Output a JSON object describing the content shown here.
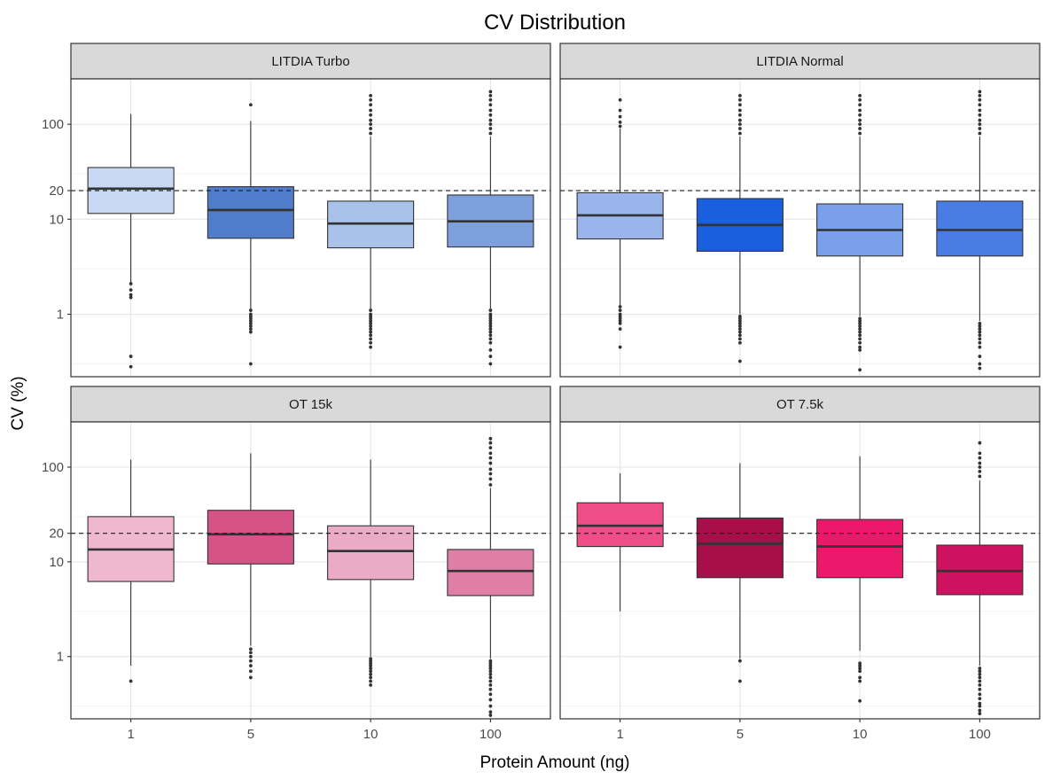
{
  "chart_data": {
    "type": "box",
    "title": "CV Distribution",
    "xlabel": "Protein Amount (ng)",
    "ylabel": "CV (%)",
    "y_scale": "log10",
    "y_ticks": [
      1,
      10,
      20,
      100
    ],
    "y_tick_labels": [
      "1",
      "10",
      "20",
      "100"
    ],
    "ylim": [
      0.22,
      300
    ],
    "reference_line": {
      "y": 20,
      "style": "dashed"
    },
    "categories": [
      "1",
      "5",
      "10",
      "100"
    ],
    "grid": true,
    "legend": "none",
    "panels": [
      {
        "label": "LITDIA Turbo",
        "boxes": [
          {
            "x": "1",
            "whisker_low": 2.0,
            "q1": 11.5,
            "median": 21.0,
            "q3": 35.0,
            "whisker_high": 128,
            "color": "#c9d9f3",
            "outliers": [
              2.1,
              1.8,
              1.6,
              1.5,
              0.36,
              0.28
            ]
          },
          {
            "x": "5",
            "whisker_low": 1.15,
            "q1": 6.3,
            "median": 12.5,
            "q3": 22.0,
            "whisker_high": 108,
            "color": "#4f7ccb",
            "outliers": [
              1.1,
              1.0,
              0.95,
              0.9,
              0.85,
              0.8,
              0.75,
              0.7,
              0.65,
              0.3,
              160
            ]
          },
          {
            "x": "10",
            "whisker_low": 1.15,
            "q1": 5.0,
            "median": 9.0,
            "q3": 15.5,
            "whisker_high": 74,
            "color": "#a9c2ea",
            "outliers": [
              1.1,
              1.0,
              0.95,
              0.9,
              0.85,
              0.8,
              0.75,
              0.7,
              0.65,
              0.6,
              0.55,
              0.5,
              0.45,
              80,
              90,
              100,
              110,
              125,
              140,
              160,
              180,
              200
            ]
          },
          {
            "x": "100",
            "whisker_low": 1.15,
            "q1": 5.1,
            "median": 9.5,
            "q3": 18.0,
            "whisker_high": 74,
            "color": "#7da0da",
            "outliers": [
              1.1,
              1.0,
              0.95,
              0.9,
              0.85,
              0.8,
              0.75,
              0.7,
              0.65,
              0.6,
              0.55,
              0.5,
              0.42,
              0.36,
              0.3,
              80,
              90,
              100,
              110,
              125,
              140,
              160,
              180,
              200,
              220
            ]
          }
        ]
      },
      {
        "label": "LITDIA Normal",
        "boxes": [
          {
            "x": "1",
            "whisker_low": 1.25,
            "q1": 6.2,
            "median": 11.0,
            "q3": 19.0,
            "whisker_high": 90,
            "color": "#99b5ec",
            "outliers": [
              1.2,
              1.1,
              1.0,
              0.95,
              0.9,
              0.85,
              0.8,
              0.7,
              0.45,
              95,
              105,
              120,
              140,
              180
            ]
          },
          {
            "x": "5",
            "whisker_low": 1.0,
            "q1": 4.6,
            "median": 8.7,
            "q3": 16.5,
            "whisker_high": 74,
            "color": "#1a5fde",
            "outliers": [
              0.95,
              0.9,
              0.85,
              0.8,
              0.75,
              0.7,
              0.65,
              0.6,
              0.55,
              0.5,
              0.32,
              80,
              90,
              100,
              110,
              125,
              140,
              160,
              180,
              200
            ]
          },
          {
            "x": "10",
            "whisker_low": 0.95,
            "q1": 4.1,
            "median": 7.7,
            "q3": 14.5,
            "whisker_high": 74,
            "color": "#7aa0eb",
            "outliers": [
              0.9,
              0.85,
              0.8,
              0.75,
              0.7,
              0.65,
              0.6,
              0.55,
              0.5,
              0.45,
              0.42,
              0.26,
              80,
              90,
              100,
              110,
              125,
              140,
              160,
              180,
              200
            ]
          },
          {
            "x": "100",
            "whisker_low": 0.85,
            "q1": 4.1,
            "median": 7.7,
            "q3": 15.5,
            "whisker_high": 74,
            "color": "#4a7de3",
            "outliers": [
              0.8,
              0.75,
              0.7,
              0.65,
              0.6,
              0.55,
              0.5,
              0.45,
              0.36,
              0.3,
              0.27,
              80,
              90,
              100,
              110,
              125,
              140,
              160,
              180,
              200,
              220
            ]
          }
        ]
      },
      {
        "label": "OT 15k",
        "boxes": [
          {
            "x": "1",
            "whisker_low": 0.8,
            "q1": 6.2,
            "median": 13.5,
            "q3": 30.0,
            "whisker_high": 120,
            "color": "#efb8cf",
            "outliers": [
              0.55
            ]
          },
          {
            "x": "5",
            "whisker_low": 1.3,
            "q1": 9.5,
            "median": 19.5,
            "q3": 35.0,
            "whisker_high": 140,
            "color": "#d65387",
            "outliers": [
              1.2,
              1.1,
              1.0,
              0.9,
              0.8,
              0.7,
              0.6
            ]
          },
          {
            "x": "10",
            "whisker_low": 1.0,
            "q1": 6.5,
            "median": 13.0,
            "q3": 24.0,
            "whisker_high": 120,
            "color": "#ebabc6",
            "outliers": [
              0.95,
              0.9,
              0.85,
              0.8,
              0.75,
              0.7,
              0.65,
              0.6,
              0.55,
              0.5
            ]
          },
          {
            "x": "100",
            "whisker_low": 0.95,
            "q1": 4.4,
            "median": 8.0,
            "q3": 13.5,
            "whisker_high": 60,
            "color": "#df7fa7",
            "outliers": [
              0.9,
              0.85,
              0.8,
              0.75,
              0.7,
              0.65,
              0.6,
              0.55,
              0.5,
              0.45,
              0.4,
              0.35,
              0.3,
              0.26,
              0.24,
              65,
              75,
              85,
              95,
              110,
              125,
              140,
              160,
              180,
              200
            ]
          }
        ]
      },
      {
        "label": "OT 7.5k",
        "boxes": [
          {
            "x": "1",
            "whisker_low": 3.0,
            "q1": 14.5,
            "median": 24.0,
            "q3": 42.0,
            "whisker_high": 86,
            "color": "#ef4d88",
            "outliers": []
          },
          {
            "x": "5",
            "whisker_low": 0.95,
            "q1": 6.8,
            "median": 15.5,
            "q3": 29.0,
            "whisker_high": 110,
            "color": "#a60f4a",
            "outliers": [
              0.9,
              0.55
            ]
          },
          {
            "x": "10",
            "whisker_low": 1.15,
            "q1": 6.8,
            "median": 14.5,
            "q3": 28.0,
            "whisker_high": 130,
            "color": "#ec186c",
            "outliers": [
              0.85,
              0.8,
              0.75,
              0.7,
              0.6,
              0.55,
              0.34
            ]
          },
          {
            "x": "100",
            "whisker_low": 0.8,
            "q1": 4.5,
            "median": 8.0,
            "q3": 15.0,
            "whisker_high": 72,
            "color": "#cd1262",
            "outliers": [
              0.75,
              0.7,
              0.65,
              0.6,
              0.55,
              0.5,
              0.45,
              0.4,
              0.36,
              0.32,
              0.3,
              0.27,
              0.25,
              80,
              90,
              100,
              110,
              125,
              140,
              180
            ]
          }
        ]
      }
    ]
  }
}
